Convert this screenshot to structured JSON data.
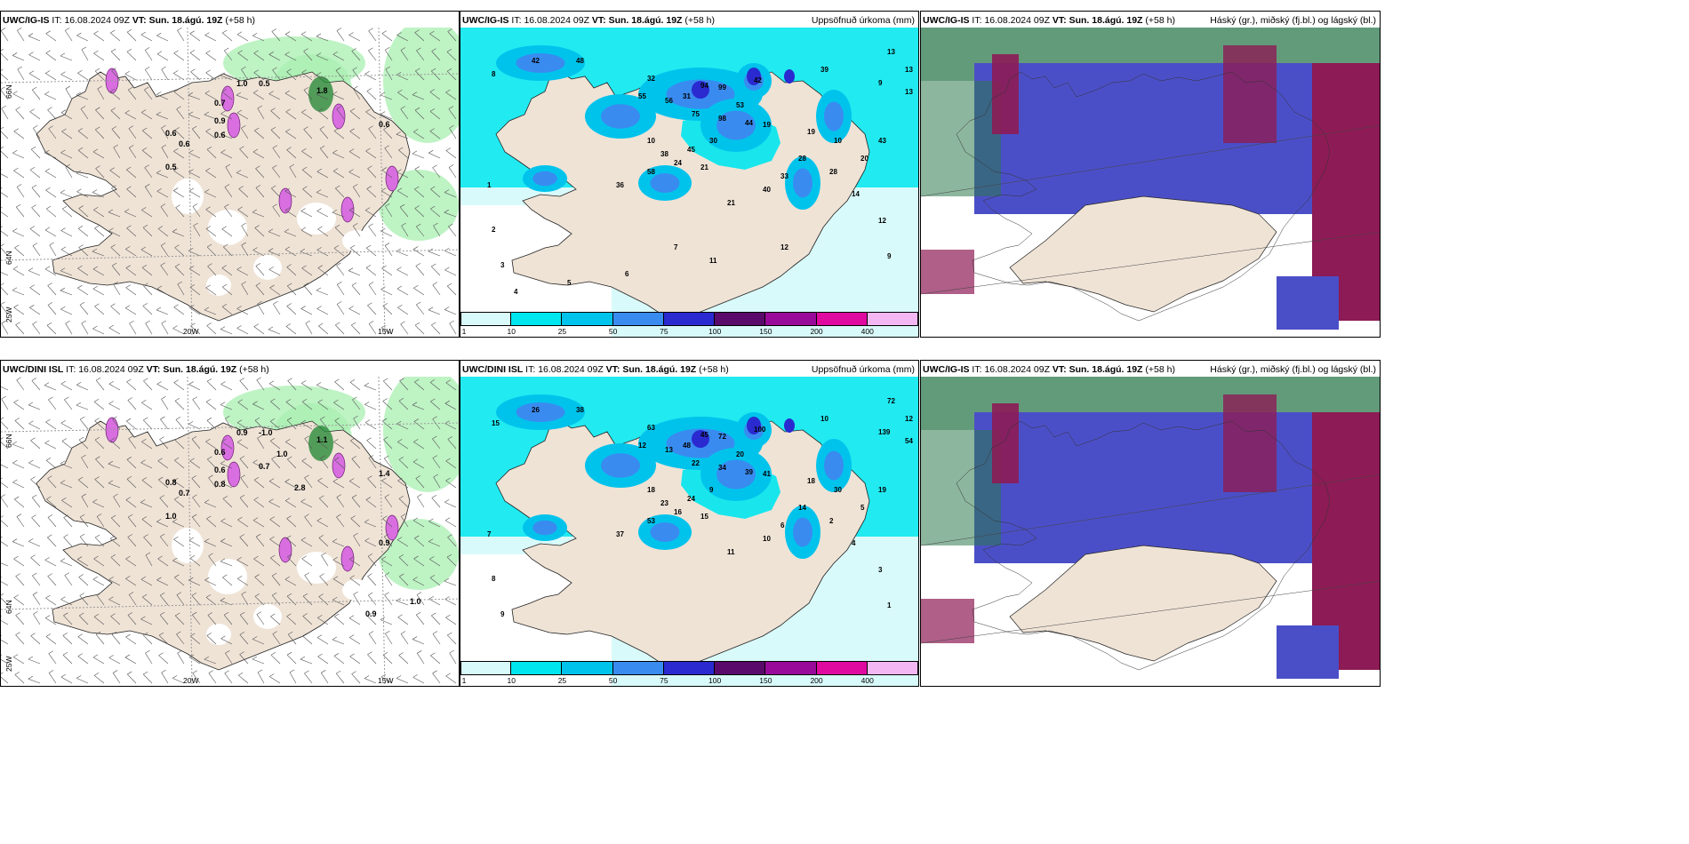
{
  "colors": {
    "land": "#efe3d6",
    "sea_light": "#e8fbfb",
    "grid": "#9a9a9a",
    "precip": [
      "#d9fafa",
      "#00e6ee",
      "#00c3ec",
      "#3a8bf0",
      "#2a2ad0",
      "#5a0a6a",
      "#9a0a9a",
      "#e00aa0",
      "#f3b7f3"
    ],
    "pcp_green": "#a8efb0",
    "pcp_green_dark": "#2b8a3a",
    "cloud_high": "#2e7a4e",
    "cloud_mid": "#4b4fc7",
    "cloud_low": "#8d1b55"
  },
  "rows": [
    {
      "model": "UWC/IG-IS",
      "panels": [
        {
          "model": "UWC/IG-IS",
          "it_label": "IT:",
          "it_value": "16.08.2024 09Z",
          "vt_label": "VT:",
          "vt_value": "Sun. 18.ágú. 19Z",
          "lead": "(+58 h)",
          "right": ""
        },
        {
          "model": "UWC/IG-IS",
          "it_label": "IT:",
          "it_value": "16.08.2024 09Z",
          "vt_label": "VT:",
          "vt_value": "Sun. 18.ágú. 19Z",
          "lead": "(+58 h)",
          "right": "Uppsöfnuð úrkoma (mm)"
        },
        {
          "model": "UWC/IG-IS",
          "it_label": "IT:",
          "it_value": "16.08.2024 09Z",
          "vt_label": "VT:",
          "vt_value": "Sun. 18.ágú. 19Z",
          "lead": "(+58 h)",
          "right": "Háský (gr.), miðský (fj.bl.) og lágský (bl.)"
        }
      ],
      "accum_labels": [
        "8",
        "42",
        "48",
        "32",
        "31",
        "94",
        "99",
        "42",
        "13",
        "9",
        "13",
        "13",
        "39",
        "55",
        "56",
        "75",
        "98",
        "53",
        "44",
        "19",
        "30",
        "10",
        "38",
        "45",
        "36",
        "58",
        "24",
        "21",
        "21",
        "40",
        "33",
        "28",
        "19",
        "10",
        "43",
        "20",
        "14",
        "12",
        "28",
        "9",
        "1",
        "2",
        "3",
        "4",
        "5",
        "6",
        "7",
        "11",
        "12"
      ],
      "precip_labels": [
        "0.5",
        "0.6",
        "0.6",
        "0.7",
        "0.9",
        "1.0",
        "0.5",
        "0.6",
        "0.6",
        "1.8"
      ]
    },
    {
      "model": "UWC/DINI ISL",
      "panels": [
        {
          "model": "UWC/DINI ISL",
          "it_label": "IT:",
          "it_value": "16.08.2024 09Z",
          "vt_label": "VT:",
          "vt_value": "Sun. 18.ágú. 19Z",
          "lead": "(+58 h)",
          "right": ""
        },
        {
          "model": "UWC/DINI ISL",
          "it_label": "IT:",
          "it_value": "16.08.2024 09Z",
          "vt_label": "VT:",
          "vt_value": "Sun. 18.ágú. 19Z",
          "lead": "(+58 h)",
          "right": "Uppsöfnuð úrkoma (mm)"
        },
        {
          "model": "UWC/IG-IS",
          "it_label": "IT:",
          "it_value": "16.08.2024 09Z",
          "vt_label": "VT:",
          "vt_value": "Sun. 18.ágú. 19Z",
          "lead": "(+58 h)",
          "right": "Háský (gr.), miðský (fj.bl.) og lágský (bl.)"
        }
      ],
      "accum_labels": [
        "15",
        "26",
        "38",
        "63",
        "48",
        "45",
        "72",
        "100",
        "72",
        "139",
        "54",
        "12",
        "10",
        "12",
        "13",
        "22",
        "34",
        "20",
        "39",
        "41",
        "9",
        "18",
        "23",
        "24",
        "37",
        "53",
        "16",
        "15",
        "11",
        "10",
        "6",
        "14",
        "18",
        "30",
        "19",
        "5",
        "4",
        "3",
        "2",
        "1",
        "7",
        "8",
        "9"
      ],
      "precip_labels": [
        "1.0",
        "0.8",
        "0.7",
        "0.6",
        "0.6",
        "0.9",
        "-1.0",
        "0.8",
        "1.4",
        "1.1",
        "1.0",
        "0.9",
        "1.0",
        "0.9",
        "0.7",
        "2.8"
      ]
    }
  ],
  "colorbar": {
    "ticks": [
      "1",
      "10",
      "25",
      "50",
      "75",
      "100",
      "150",
      "200",
      "400"
    ]
  },
  "axes": {
    "lat_top": "66N",
    "lat_bottom": "64N",
    "lon_left": "25W",
    "lon_mid": "20W",
    "lon_right": "15W"
  }
}
